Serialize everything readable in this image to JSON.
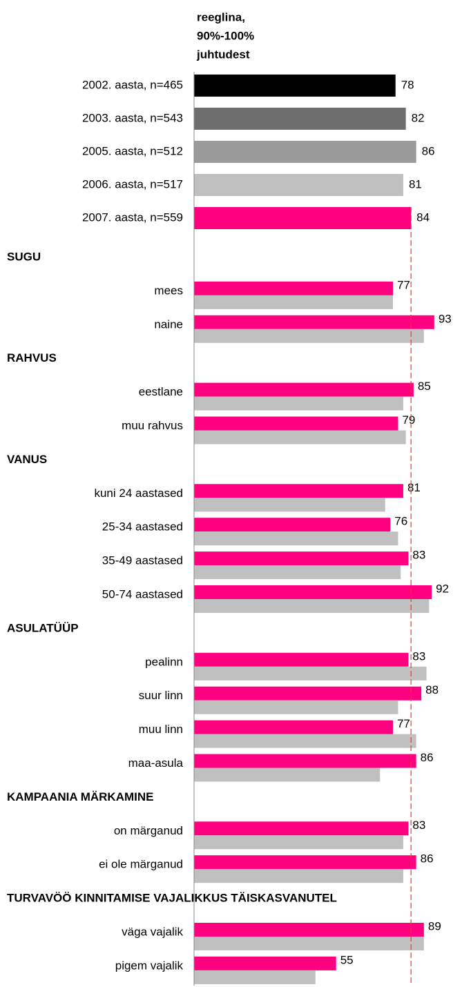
{
  "chart_data": {
    "type": "bar",
    "title_lines": [
      "reeglina,",
      "90%-100%",
      "juhtudest"
    ],
    "xlim": [
      0,
      100
    ],
    "categories": [
      "2002. aasta, n=465",
      "2003. aasta, n=543",
      "2005. aasta, n=512",
      "2006. aasta, n=517",
      "2007. aasta, n=559"
    ],
    "values": [
      78,
      82,
      86,
      81,
      84
    ],
    "colors": [
      "#000000",
      "#6e6e6e",
      "#9a9a9a",
      "#c0c0c0",
      "#ff0080"
    ],
    "reference_color": "#ff3030",
    "groups": [
      {
        "name": "SUGU",
        "categories": [
          "mees",
          "naine"
        ],
        "series": [
          {
            "color": "#ff0080",
            "values": [
              77,
              93
            ]
          },
          {
            "color": "#c0c0c0",
            "values": [
              77,
              89
            ]
          }
        ]
      },
      {
        "name": "RAHVUS",
        "categories": [
          "eestlane",
          "muu rahvus"
        ],
        "series": [
          {
            "color": "#ff0080",
            "values": [
              85,
              79
            ]
          },
          {
            "color": "#c0c0c0",
            "values": [
              81,
              82
            ]
          }
        ]
      },
      {
        "name": "VANUS",
        "categories": [
          "kuni 24 aastased",
          "25-34 aastased",
          "35-49 aastased",
          "50-74 aastased"
        ],
        "series": [
          {
            "color": "#ff0080",
            "values": [
              81,
              76,
              83,
              92
            ]
          },
          {
            "color": "#c0c0c0",
            "values": [
              74,
              79,
              80,
              91
            ]
          }
        ]
      },
      {
        "name": "ASULATÜÜP",
        "categories": [
          "pealinn",
          "suur linn",
          "muu linn",
          "maa-asula"
        ],
        "series": [
          {
            "color": "#ff0080",
            "values": [
              83,
              88,
              77,
              86
            ]
          },
          {
            "color": "#c0c0c0",
            "values": [
              90,
              79,
              86,
              72
            ]
          }
        ]
      },
      {
        "name": "KAMPAANIA MÄRKAMINE",
        "categories": [
          "on märganud",
          "ei ole märganud"
        ],
        "series": [
          {
            "color": "#ff0080",
            "values": [
              83,
              86
            ]
          },
          {
            "color": "#c0c0c0",
            "values": [
              81,
              81
            ]
          }
        ]
      },
      {
        "name": "TURVAVÖÖ KINNITAMISE VAJALIKKUS TÄISKASVANUTEL",
        "categories": [
          "väga vajalik",
          "pigem vajalik"
        ],
        "series": [
          {
            "color": "#ff0080",
            "values": [
              89,
              55
            ]
          },
          {
            "color": "#c0c0c0",
            "values": [
              89,
              47
            ]
          }
        ]
      }
    ]
  }
}
